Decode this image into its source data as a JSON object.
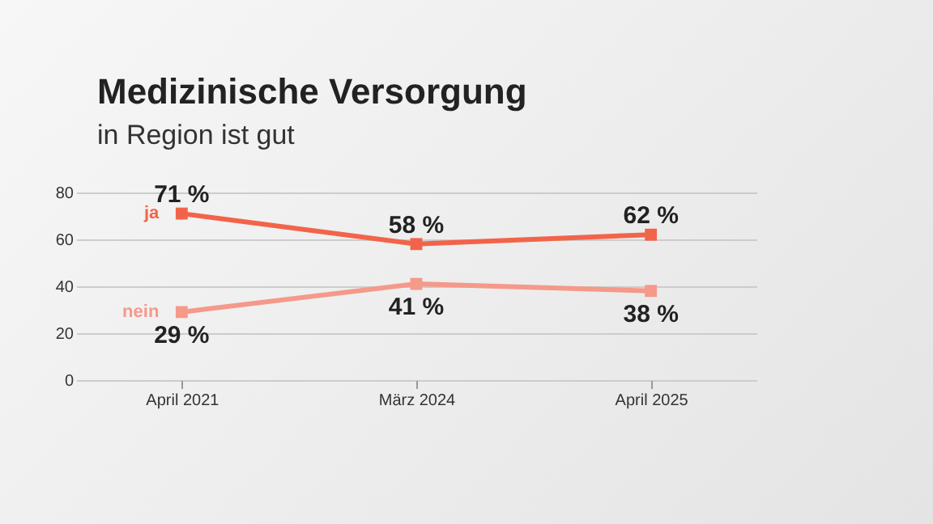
{
  "chart_data": {
    "type": "line",
    "title": "Medizinische Versorgung",
    "subtitle": "in Region ist gut",
    "categories": [
      "April 2021",
      "März 2024",
      "April 2025"
    ],
    "series": [
      {
        "name": "ja",
        "color": "#f2644a",
        "values": [
          71,
          58,
          62
        ],
        "value_labels": [
          "71 %",
          "58 %",
          "62 %"
        ]
      },
      {
        "name": "nein",
        "color": "#f5998a",
        "values": [
          29,
          41,
          38
        ],
        "value_labels": [
          "29 %",
          "41 %",
          "38 %"
        ]
      }
    ],
    "ylim": [
      0,
      80
    ],
    "yticks": [
      0,
      20,
      40,
      60,
      80
    ],
    "grid": "y",
    "marker": "square",
    "line_style": "solid"
  }
}
